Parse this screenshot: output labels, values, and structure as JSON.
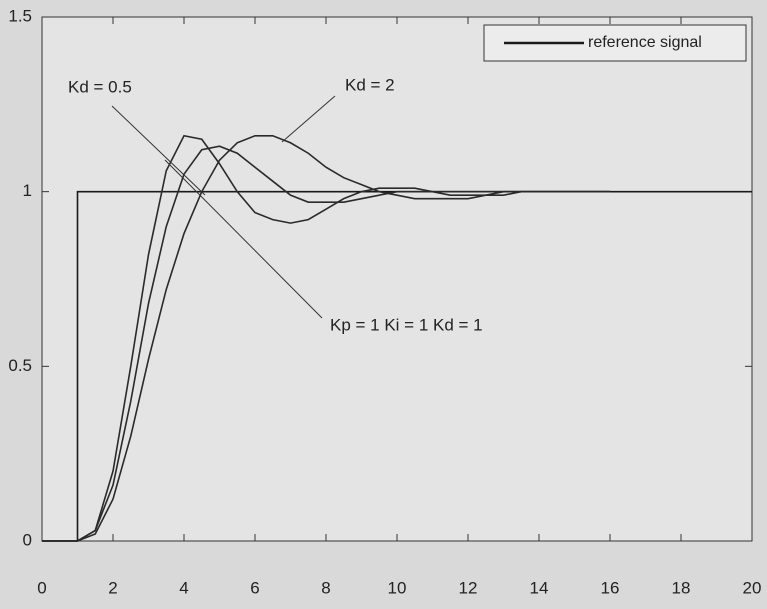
{
  "chart_data": {
    "type": "line",
    "annotations": [
      "Kd = 0.5",
      "Kd = 2",
      "Kp = 1  Ki = 1  Kd = 1"
    ],
    "legend": "upper right",
    "series": [
      {
        "name": "reference signal",
        "color": "#1a1a1a",
        "x": [
          0,
          1,
          1,
          20
        ],
        "values": [
          0,
          0,
          1,
          1
        ]
      },
      {
        "color": "#2a2a2a",
        "x": [
          0,
          0.5,
          1,
          1.5,
          2,
          2.5,
          3,
          3.5,
          4,
          4.5,
          5,
          5.5,
          6,
          6.5,
          7,
          7.5,
          8,
          8.5,
          9,
          9.5,
          10,
          10.5,
          11,
          11.5,
          12,
          12.5,
          13,
          13.5,
          14,
          14.5,
          15,
          15.5,
          16
        ],
        "values": [
          0,
          0,
          0,
          0.03,
          0.2,
          0.5,
          0.82,
          1.06,
          1.16,
          1.15,
          1.08,
          1.0,
          0.94,
          0.92,
          0.91,
          0.92,
          0.95,
          0.98,
          1.0,
          1.01,
          1.01,
          1.01,
          1.0,
          0.99,
          0.99,
          0.99,
          1.0,
          1.0,
          1.0,
          1.0,
          1.0,
          1.0,
          1.0
        ]
      },
      {
        "color": "#2a2a2a",
        "x": [
          0,
          0.5,
          1,
          1.5,
          2,
          2.5,
          3,
          3.5,
          4,
          4.5,
          5,
          5.5,
          6,
          6.5,
          7,
          7.5,
          8,
          8.5,
          9,
          9.5,
          10,
          10.5,
          11,
          11.5,
          12,
          12.5,
          13,
          13.5,
          14,
          14.5,
          15,
          15.5,
          16
        ],
        "values": [
          0,
          0,
          0,
          0.03,
          0.16,
          0.4,
          0.68,
          0.9,
          1.05,
          1.12,
          1.13,
          1.11,
          1.07,
          1.03,
          0.99,
          0.97,
          0.97,
          0.97,
          0.98,
          0.99,
          1.0,
          1.0,
          1.0,
          1.0,
          1.0,
          1.0,
          1.0,
          1.0,
          1.0,
          1.0,
          1.0,
          1.0,
          1.0
        ]
      },
      {
        "color": "#2a2a2a",
        "x": [
          0,
          0.5,
          1,
          1.5,
          2,
          2.5,
          3,
          3.5,
          4,
          4.5,
          5,
          5.5,
          6,
          6.5,
          7,
          7.5,
          8,
          8.5,
          9,
          9.5,
          10,
          10.5,
          11,
          11.5,
          12,
          12.5,
          13,
          13.5,
          14,
          14.5,
          15,
          15.5,
          16
        ],
        "values": [
          0,
          0,
          0,
          0.02,
          0.12,
          0.3,
          0.52,
          0.72,
          0.88,
          1.0,
          1.09,
          1.14,
          1.16,
          1.16,
          1.14,
          1.11,
          1.07,
          1.04,
          1.02,
          1.0,
          0.99,
          0.98,
          0.98,
          0.98,
          0.98,
          0.99,
          0.99,
          1.0,
          1.0,
          1.0,
          1.0,
          1.0,
          1.0
        ]
      }
    ],
    "xlim": [
      0,
      20
    ],
    "xticks": [
      0,
      2,
      4,
      6,
      8,
      10,
      12,
      14,
      16,
      18,
      20
    ],
    "ylim": [
      0,
      1.5
    ],
    "yticks": [
      0,
      0.5,
      1,
      1.5
    ]
  }
}
